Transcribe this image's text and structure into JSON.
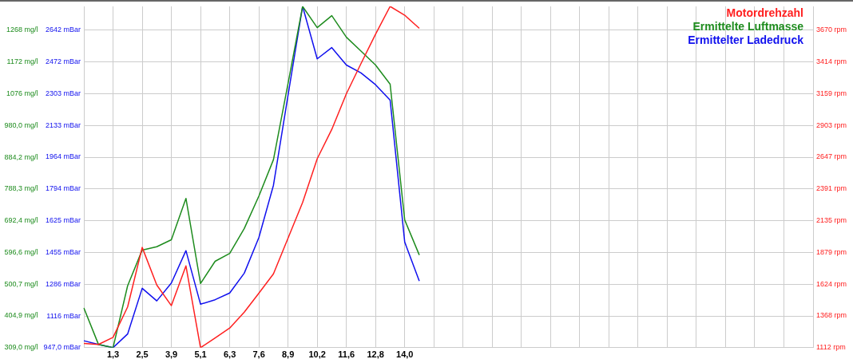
{
  "chart_data": {
    "type": "line",
    "categories": [
      null,
      null,
      "1,3",
      null,
      "2,5",
      null,
      "3,9",
      null,
      "5,1",
      null,
      "6,3",
      null,
      "7,6",
      null,
      "8,9",
      null,
      "10,2",
      null,
      "11,6",
      null,
      "12,8",
      null,
      "14,0",
      null,
      null,
      null,
      null,
      null,
      null,
      null,
      null,
      null,
      null,
      null,
      null,
      null,
      null,
      null,
      null,
      null,
      null,
      null,
      null,
      null,
      null,
      null,
      null,
      null,
      null,
      null,
      null
    ],
    "series": [
      {
        "name": "Motordrehzahl",
        "color": "#ff2020",
        "axis": "y3",
        "values": [
          1146,
          1138,
          1195,
          1440,
          1920,
          1617,
          1451,
          1771,
          1112,
          1191,
          1270,
          1398,
          1551,
          1707,
          1995,
          2282,
          2634,
          2871,
          3158,
          3401,
          3638,
          3862,
          3791,
          3685,
          null,
          null,
          null,
          null,
          null,
          null,
          null,
          null,
          null,
          null,
          null,
          null,
          null,
          null,
          null,
          null,
          null,
          null,
          null,
          null,
          null,
          null,
          null,
          null,
          null,
          null,
          null
        ]
      },
      {
        "name": "Ermittelte Luftmasse",
        "color": "#1e8c1e",
        "axis": "y2",
        "values": [
          429,
          319,
          309,
          496,
          604,
          614,
          635,
          760,
          503,
          570,
          594,
          669,
          767,
          877,
          1107,
          1340,
          1276,
          1312,
          1247,
          1205,
          1163,
          1105,
          695,
          589,
          null,
          null,
          null,
          null,
          null,
          null,
          null,
          null,
          null,
          null,
          null,
          null,
          null,
          null,
          null,
          null,
          null,
          null,
          null,
          null,
          null,
          null,
          null,
          null,
          null,
          null,
          null
        ]
      },
      {
        "name": "Ermittelter Ladedruck",
        "color": "#1010ee",
        "axis": "y",
        "values": [
          984,
          964,
          947,
          1020,
          1264,
          1197,
          1292,
          1465,
          1179,
          1203,
          1239,
          1345,
          1535,
          1814,
          2295,
          2769,
          2489,
          2549,
          2456,
          2414,
          2351,
          2269,
          1511,
          1303,
          null,
          null,
          null,
          null,
          null,
          null,
          null,
          null,
          null,
          null,
          null,
          null,
          null,
          null,
          null,
          null,
          null,
          null,
          null,
          null,
          null,
          null,
          null,
          null,
          null,
          null,
          null
        ]
      }
    ],
    "ylim": [
      947,
      2769
    ],
    "yticks": [
      {
        "value": 947,
        "label": "947,0 mBar"
      },
      {
        "value": 1116,
        "label": "1116 mBar"
      },
      {
        "value": 1286,
        "label": "1286 mBar"
      },
      {
        "value": 1455,
        "label": "1455 mBar"
      },
      {
        "value": 1625,
        "label": "1625 mBar"
      },
      {
        "value": 1794,
        "label": "1794 mBar"
      },
      {
        "value": 1964,
        "label": "1964 mBar"
      },
      {
        "value": 2133,
        "label": "2133 mBar"
      },
      {
        "value": 2303,
        "label": "2303 mBar"
      },
      {
        "value": 2472,
        "label": "2472 mBar"
      },
      {
        "value": 2642,
        "label": "2642 mBar"
      }
    ],
    "y2lim": [
      309,
      1340
    ],
    "y2ticks": [
      {
        "value": 309,
        "label": "309,0 mg/l"
      },
      {
        "value": 404.9,
        "label": "404,9 mg/l"
      },
      {
        "value": 500.7,
        "label": "500,7 mg/l"
      },
      {
        "value": 596.6,
        "label": "596,6 mg/l"
      },
      {
        "value": 692.4,
        "label": "692,4 mg/l"
      },
      {
        "value": 788.3,
        "label": "788,3 mg/l"
      },
      {
        "value": 884.2,
        "label": "884,2 mg/l"
      },
      {
        "value": 980,
        "label": "980,0 mg/l"
      },
      {
        "value": 1076,
        "label": "1076 mg/l"
      },
      {
        "value": 1172,
        "label": "1172 mg/l"
      },
      {
        "value": 1268,
        "label": "1268 mg/l"
      }
    ],
    "y3lim": [
      1112,
      3862
    ],
    "y3ticks": [
      {
        "value": 1112,
        "label": "1112 rpm"
      },
      {
        "value": 1368,
        "label": "1368 rpm"
      },
      {
        "value": 1624,
        "label": "1624 rpm"
      },
      {
        "value": 1879,
        "label": "1879 rpm"
      },
      {
        "value": 2135,
        "label": "2135 rpm"
      },
      {
        "value": 2391,
        "label": "2391 rpm"
      },
      {
        "value": 2647,
        "label": "2647 rpm"
      },
      {
        "value": 2903,
        "label": "2903 rpm"
      },
      {
        "value": 3159,
        "label": "3159 rpm"
      },
      {
        "value": 3414,
        "label": "3414 rpm"
      },
      {
        "value": 3670,
        "label": "3670 rpm"
      }
    ],
    "grid": true,
    "legend": "top right",
    "marker": "none",
    "line_style": "solid"
  }
}
